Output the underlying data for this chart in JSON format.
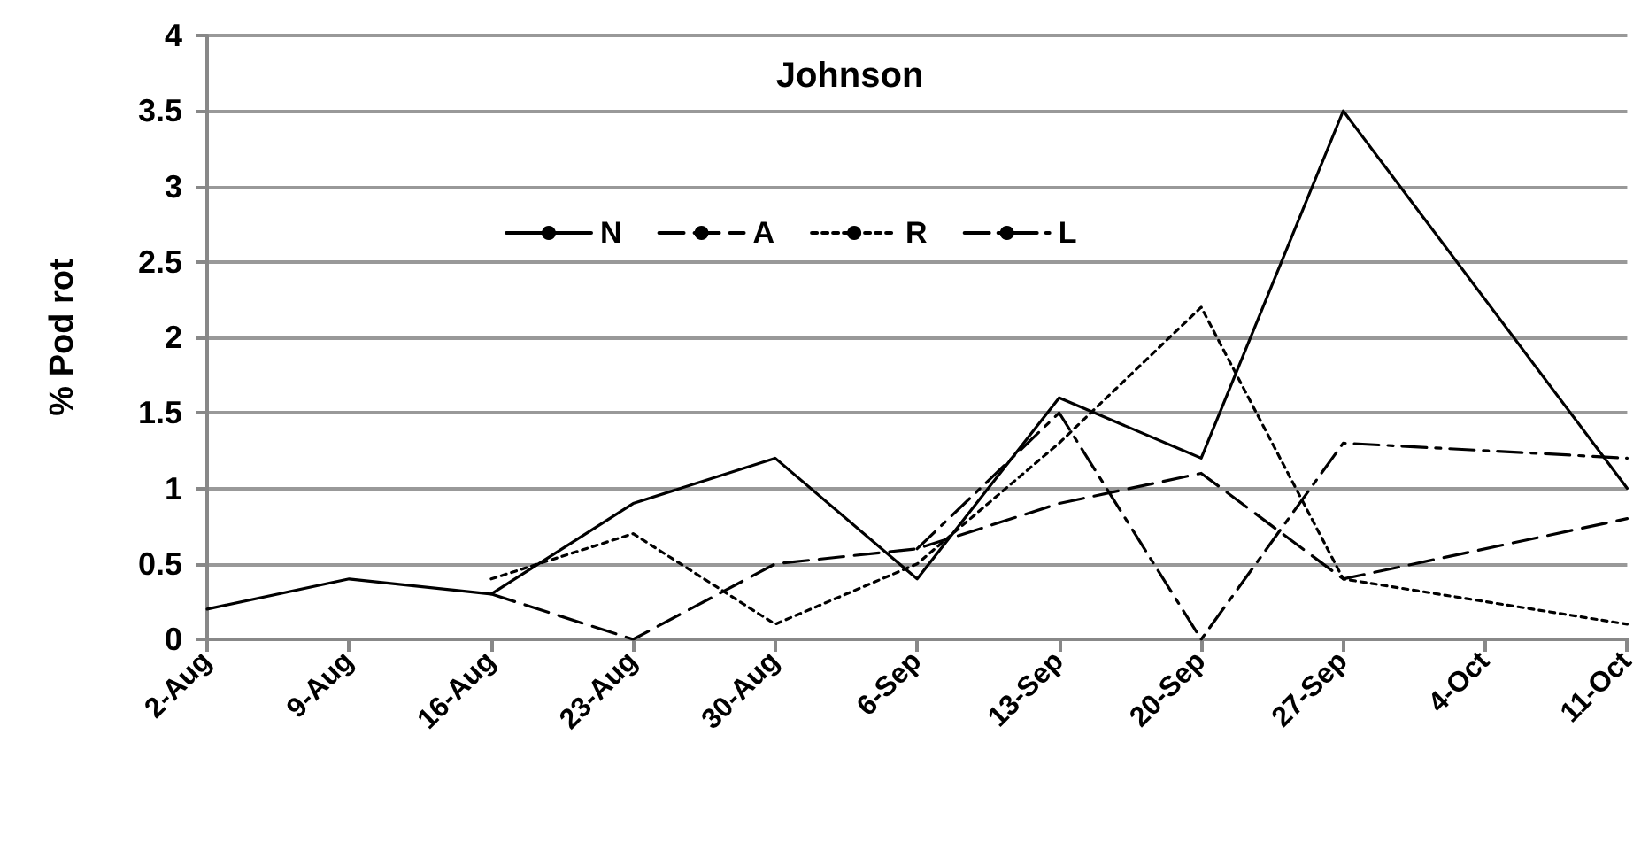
{
  "chart_data": {
    "type": "line",
    "title": "Johnson",
    "ylabel": "% Pod rot",
    "categories": [
      "2-Aug",
      "9-Aug",
      "16-Aug",
      "23-Aug",
      "30-Aug",
      "6-Sep",
      "13-Sep",
      "20-Sep",
      "27-Sep",
      "4-Oct",
      "11-Oct"
    ],
    "series": [
      {
        "name": "N",
        "color": "#000000",
        "line_style": "solid",
        "values": [
          0.2,
          0.4,
          0.3,
          0.9,
          1.2,
          0.4,
          1.6,
          1.2,
          3.5,
          null,
          1.0
        ]
      },
      {
        "name": "A",
        "color": "#000000",
        "line_style": "dashed",
        "values": [
          null,
          null,
          0.3,
          0.0,
          0.5,
          0.6,
          0.9,
          1.1,
          0.4,
          null,
          0.8
        ]
      },
      {
        "name": "R",
        "color": "#000000",
        "line_style": "dotted",
        "values": [
          null,
          null,
          0.4,
          0.7,
          0.1,
          0.5,
          1.3,
          2.2,
          0.4,
          null,
          0.1
        ]
      },
      {
        "name": "L",
        "color": "#000000",
        "line_style": "dashdot",
        "values": [
          null,
          null,
          null,
          null,
          null,
          0.6,
          1.5,
          0.0,
          1.3,
          null,
          1.2
        ]
      }
    ],
    "ylim": [
      0,
      4
    ],
    "yticks": [
      0,
      0.5,
      1,
      1.5,
      2,
      2.5,
      3,
      3.5,
      4
    ],
    "grid": "y",
    "legend": "top",
    "marker": "none"
  }
}
